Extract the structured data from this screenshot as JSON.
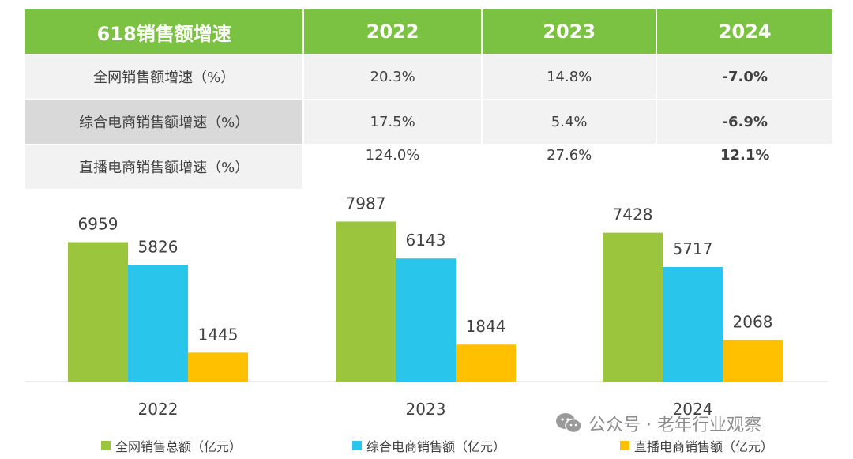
{
  "table": {
    "header": [
      "618销售额增速",
      "2022",
      "2023",
      "2024"
    ],
    "rows": [
      {
        "label": "全网销售额增速（%）",
        "values": [
          "20.3%",
          "14.8%",
          "-7.0%"
        ]
      },
      {
        "label": "综合电商销售额增速（%）",
        "values": [
          "17.5%",
          "5.4%",
          "-6.9%"
        ]
      },
      {
        "label": "直播电商销售额增速（%）",
        "values": [
          "124.0%",
          "27.6%",
          "12.1%"
        ]
      }
    ]
  },
  "chart_data": {
    "type": "bar",
    "categories": [
      "2022",
      "2023",
      "2024"
    ],
    "series": [
      {
        "name": "全网销售总额（亿元）",
        "values": [
          6959,
          7987,
          7428
        ],
        "color": "#9bc53d"
      },
      {
        "name": "综合电商销售额（亿元）",
        "values": [
          5826,
          6143,
          5717
        ],
        "color": "#29c5ea"
      },
      {
        "name": "直播电商销售额（亿元）",
        "values": [
          1445,
          1844,
          2068
        ],
        "color": "#ffc000"
      }
    ],
    "title": "",
    "xlabel": "",
    "ylabel": "",
    "ylim": [
      0,
      8500
    ],
    "grid": false,
    "legend_position": "bottom"
  },
  "watermark": {
    "text": "公众号 · 老年行业观察",
    "icon": "wechat-icon"
  }
}
